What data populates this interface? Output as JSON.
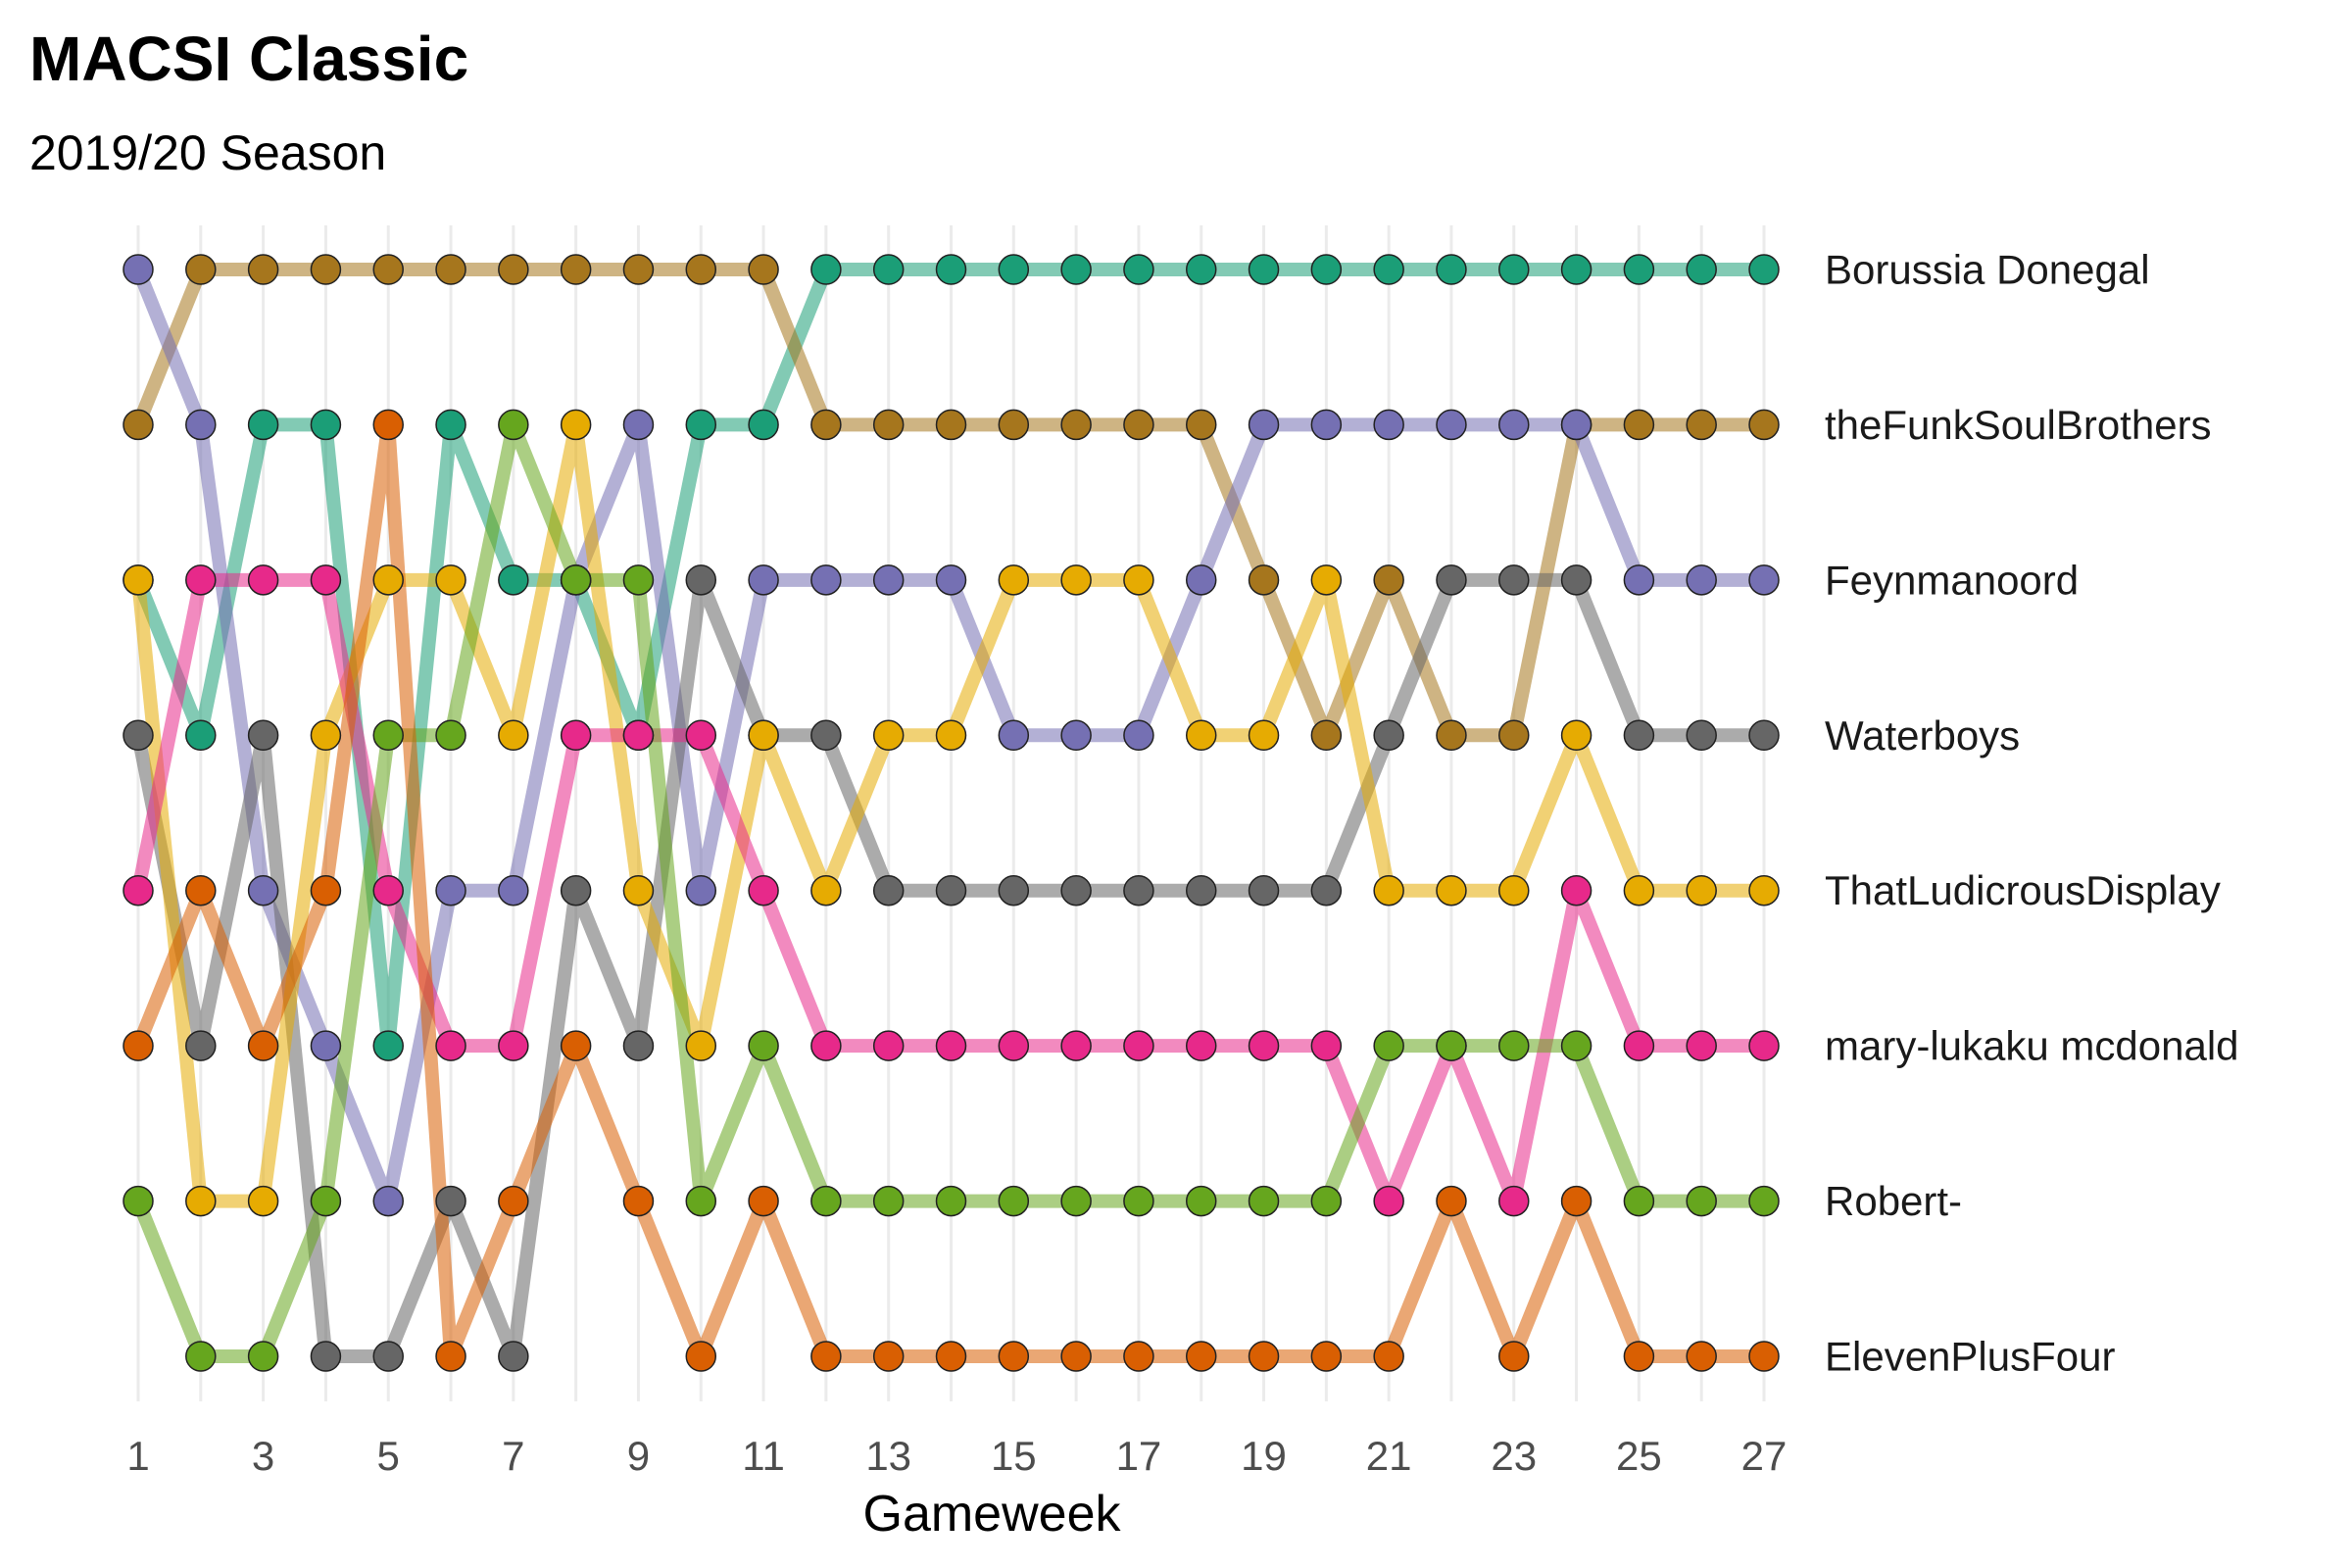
{
  "chart_data": {
    "type": "line",
    "title": "MACSI Classic",
    "subtitle": "2019/20 Season",
    "xlabel": "Gameweek",
    "ylabel": "",
    "x": [
      1,
      2,
      3,
      4,
      5,
      6,
      7,
      8,
      9,
      10,
      11,
      12,
      13,
      14,
      15,
      16,
      17,
      18,
      19,
      20,
      21,
      22,
      23,
      24,
      25,
      26,
      27
    ],
    "x_tick_labels": [
      "1",
      "3",
      "5",
      "7",
      "9",
      "11",
      "13",
      "15",
      "17",
      "19",
      "21",
      "23",
      "25",
      "27"
    ],
    "x_tick_values": [
      1,
      3,
      5,
      7,
      9,
      11,
      13,
      15,
      17,
      19,
      21,
      23,
      25,
      27
    ],
    "xlim": [
      1,
      27
    ],
    "ylim": [
      1,
      8
    ],
    "y_reversed": true,
    "grid": "vertical",
    "legend": "labels at right",
    "series": [
      {
        "name": "Borussia Donegal",
        "color": "#1B9E77",
        "values": [
          3,
          4,
          2,
          2,
          6,
          2,
          3,
          3,
          4,
          2,
          2,
          1,
          1,
          1,
          1,
          1,
          1,
          1,
          1,
          1,
          1,
          1,
          1,
          1,
          1,
          1,
          1
        ]
      },
      {
        "name": "theFunkSoulBrothers",
        "color": "#A6761D",
        "values": [
          2,
          1,
          1,
          1,
          1,
          1,
          1,
          1,
          1,
          1,
          1,
          2,
          2,
          2,
          2,
          2,
          2,
          2,
          3,
          4,
          3,
          4,
          4,
          2,
          2,
          2,
          2
        ]
      },
      {
        "name": "Feynmanoord",
        "color": "#7570B3",
        "values": [
          1,
          2,
          5,
          6,
          7,
          5,
          5,
          3,
          2,
          5,
          3,
          3,
          3,
          3,
          4,
          4,
          4,
          3,
          2,
          2,
          2,
          2,
          2,
          2,
          3,
          3,
          3
        ]
      },
      {
        "name": "Waterboys",
        "color": "#666666",
        "values": [
          4,
          6,
          4,
          8,
          8,
          7,
          8,
          5,
          6,
          3,
          4,
          4,
          5,
          5,
          5,
          5,
          5,
          5,
          5,
          5,
          4,
          3,
          3,
          3,
          4,
          4,
          4
        ]
      },
      {
        "name": "ThatLudicrousDisplay",
        "color": "#E6AB02",
        "values": [
          3,
          7,
          7,
          4,
          3,
          3,
          4,
          2,
          5,
          6,
          4,
          5,
          4,
          4,
          3,
          3,
          3,
          4,
          4,
          3,
          5,
          5,
          5,
          4,
          5,
          5,
          5
        ]
      },
      {
        "name": "mary-lukaku mcdonald",
        "color": "#E7298A",
        "values": [
          5,
          3,
          3,
          3,
          5,
          6,
          6,
          4,
          4,
          4,
          5,
          6,
          6,
          6,
          6,
          6,
          6,
          6,
          6,
          6,
          7,
          6,
          7,
          5,
          6,
          6,
          6
        ]
      },
      {
        "name": "Robert-",
        "color": "#66A61E",
        "values": [
          7,
          8,
          8,
          7,
          4,
          4,
          2,
          3,
          3,
          7,
          6,
          7,
          7,
          7,
          7,
          7,
          7,
          7,
          7,
          7,
          6,
          6,
          6,
          6,
          7,
          7,
          7
        ]
      },
      {
        "name": "ElevenPlusFour",
        "color": "#D95F02",
        "values": [
          6,
          5,
          6,
          5,
          2,
          8,
          7,
          6,
          7,
          8,
          7,
          8,
          8,
          8,
          8,
          8,
          8,
          8,
          8,
          8,
          8,
          7,
          8,
          7,
          8,
          8,
          8
        ]
      }
    ]
  }
}
